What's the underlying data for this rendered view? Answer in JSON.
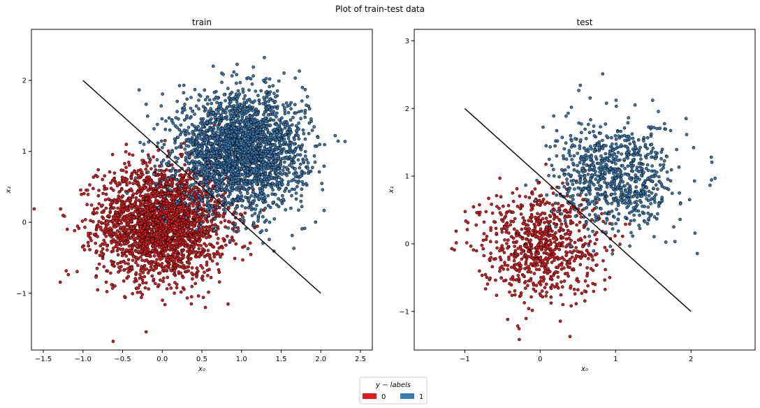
{
  "suptitle": "Plot of train-test data",
  "colors": {
    "class0": "#e41a1c",
    "class1": "#377eb8",
    "edge": "#000000"
  },
  "legend": {
    "title": "y − labels",
    "entries": [
      {
        "label": "0",
        "color": "#e41a1c"
      },
      {
        "label": "1",
        "color": "#377eb8"
      }
    ],
    "placement": "bottom-center"
  },
  "chart_data": [
    {
      "type": "scatter",
      "title": "train",
      "xlabel": "x₀",
      "ylabel": "x₁",
      "xlim": [
        -1.65,
        2.65
      ],
      "ylim": [
        -1.8,
        2.72
      ],
      "xticks": [
        -1.5,
        -1.0,
        -0.5,
        0.0,
        0.5,
        1.0,
        1.5,
        2.0,
        2.5
      ],
      "xtick_labels": [
        "−1.5",
        "−1.0",
        "−0.5",
        "0.0",
        "0.5",
        "1.0",
        "1.5",
        "2.0",
        "2.5"
      ],
      "yticks": [
        -1,
        0,
        1,
        2
      ],
      "ytick_labels": [
        "−1",
        "0",
        "1",
        "2"
      ],
      "grid": false,
      "decision_boundary": {
        "x": [
          -1.0,
          2.0
        ],
        "y": [
          2.0,
          -1.0
        ]
      },
      "clusters": [
        {
          "label": "0",
          "center": [
            0.0,
            0.0
          ],
          "std": 0.4,
          "count": 2500
        },
        {
          "label": "1",
          "center": [
            1.0,
            1.0
          ],
          "std": 0.4,
          "count": 2500
        }
      ]
    },
    {
      "type": "scatter",
      "title": "test",
      "xlabel": "x₀",
      "ylabel": "x₁",
      "xlim": [
        -1.67,
        2.85
      ],
      "ylim": [
        -1.57,
        3.17
      ],
      "xticks": [
        -1,
        0,
        1,
        2
      ],
      "xtick_labels": [
        "−1",
        "0",
        "1",
        "2"
      ],
      "yticks": [
        -1,
        0,
        1,
        2,
        3
      ],
      "ytick_labels": [
        "−1",
        "0",
        "1",
        "2",
        "3"
      ],
      "grid": false,
      "decision_boundary": {
        "x": [
          -1.0,
          2.0
        ],
        "y": [
          2.0,
          -1.0
        ]
      },
      "clusters": [
        {
          "label": "0",
          "center": [
            0.0,
            0.0
          ],
          "std": 0.4,
          "count": 800
        },
        {
          "label": "1",
          "center": [
            1.0,
            1.0
          ],
          "std": 0.4,
          "count": 800
        }
      ]
    }
  ]
}
